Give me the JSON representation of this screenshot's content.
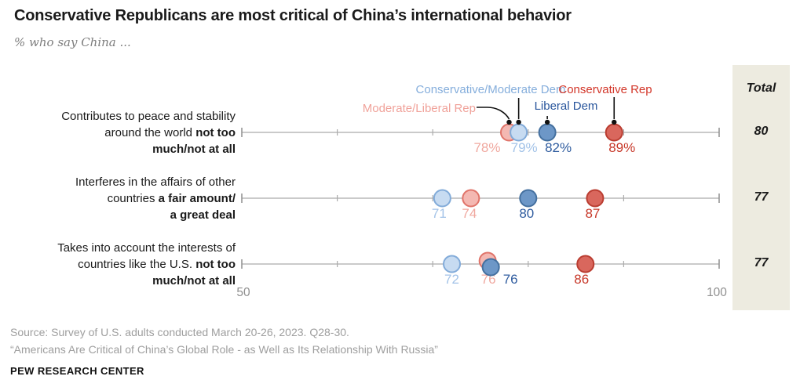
{
  "title": "Conservative Republicans are most critical of China’s international behavior",
  "subtitle": "% who say China ...",
  "total_header": "Total",
  "legend": {
    "items": [
      {
        "id": "cons_mod_dem",
        "label": "Conservative/Moderate Dem"
      },
      {
        "id": "mod_lib_rep",
        "label": "Moderate/Liberal Rep"
      },
      {
        "id": "lib_dem",
        "label": "Liberal Dem"
      },
      {
        "id": "cons_rep",
        "label": "Conservative Rep"
      }
    ]
  },
  "colors": {
    "background": "#ffffff",
    "panel": "#edebe0",
    "axis": "#ababab",
    "axis_endcap": "#8f8f8f",
    "axis_number": "#8f8f8f",
    "callout": "#111111",
    "title_text": "#1a1a1a",
    "subtitle_text": "#7d7d7d",
    "footer_text": "#9e9e9e"
  },
  "chart_data": {
    "type": "scatter",
    "title": "Conservative Republicans are most critical of China’s international behavior",
    "subtitle": "% who say China ...",
    "x_axis": {
      "min": 50,
      "max": 100,
      "ticks": [
        50,
        60,
        70,
        80,
        90,
        100
      ],
      "shown_labels": [
        "50",
        "100"
      ],
      "grid": false
    },
    "groups": [
      {
        "id": "cons_mod_dem",
        "name": "Conservative/Moderate Dem",
        "fill": "#c7dbf1",
        "stroke": "#82abd9",
        "label_color": "#a3c3e8",
        "legend_color": "#85aedc"
      },
      {
        "id": "mod_lib_rep",
        "name": "Moderate/Liberal Rep",
        "fill": "#f4b8b2",
        "stroke": "#e0746a",
        "label_color": "#f0a89f",
        "legend_color": "#f0a29a"
      },
      {
        "id": "lib_dem",
        "name": "Liberal Dem",
        "fill": "#6d97c7",
        "stroke": "#44709f",
        "label_color": "#2f5c9f",
        "legend_color": "#27549b"
      },
      {
        "id": "cons_rep",
        "name": "Conservative Rep",
        "fill": "#d9675d",
        "stroke": "#ba3d31",
        "label_color": "#c73829",
        "legend_color": "#d23528"
      }
    ],
    "rows": [
      {
        "label_lines": [
          {
            "plain": "Contributes to peace and stability",
            "bold": ""
          },
          {
            "plain": "around the world ",
            "bold": "not too"
          },
          {
            "plain": "",
            "bold": "much/not at all"
          }
        ],
        "total": "80",
        "points": [
          {
            "group": "mod_lib_rep",
            "value": 78,
            "display": "78%",
            "label_dx": -28
          },
          {
            "group": "cons_mod_dem",
            "value": 79,
            "display": "79%",
            "label_dx": 7
          },
          {
            "group": "lib_dem",
            "value": 82,
            "display": "82%",
            "label_dx": 14
          },
          {
            "group": "cons_rep",
            "value": 89,
            "display": "89%",
            "label_dx": 10
          }
        ]
      },
      {
        "label_lines": [
          {
            "plain": "Interferes in the affairs of other",
            "bold": ""
          },
          {
            "plain": "countries ",
            "bold": "a fair amount/"
          },
          {
            "plain": "",
            "bold": "a great deal"
          }
        ],
        "total": "77",
        "points": [
          {
            "group": "cons_mod_dem",
            "value": 71,
            "display": "71",
            "label_dx": -4
          },
          {
            "group": "mod_lib_rep",
            "value": 74,
            "display": "74",
            "label_dx": -2
          },
          {
            "group": "lib_dem",
            "value": 80,
            "display": "80",
            "label_dx": -2
          },
          {
            "group": "cons_rep",
            "value": 87,
            "display": "87",
            "label_dx": -3
          }
        ]
      },
      {
        "label_lines": [
          {
            "plain": "Takes into account the interests of",
            "bold": ""
          },
          {
            "plain": "countries like the U.S. ",
            "bold": "not too"
          },
          {
            "plain": "",
            "bold": "much/not at all"
          }
        ],
        "total": "77",
        "points": [
          {
            "group": "cons_mod_dem",
            "value": 72,
            "display": "72",
            "label_dx": 0
          },
          {
            "group": "mod_lib_rep",
            "value": 76,
            "display": "76",
            "label_dx": -2,
            "dot_dx": -3,
            "dot_dy": -4
          },
          {
            "group": "lib_dem",
            "value": 76,
            "display": "76",
            "label_dx": 26,
            "dot_dx": 1,
            "dot_dy": 4
          },
          {
            "group": "cons_rep",
            "value": 86,
            "display": "86",
            "label_dx": -5
          }
        ]
      }
    ]
  },
  "footer": {
    "source_line": "Source: Survey of U.S. adults conducted March 20-26, 2023. Q28-30.",
    "report_line": "“Americans Are Critical of China’s Global Role - as Well as Its Relationship With Russia”",
    "brand": "PEW RESEARCH CENTER"
  }
}
